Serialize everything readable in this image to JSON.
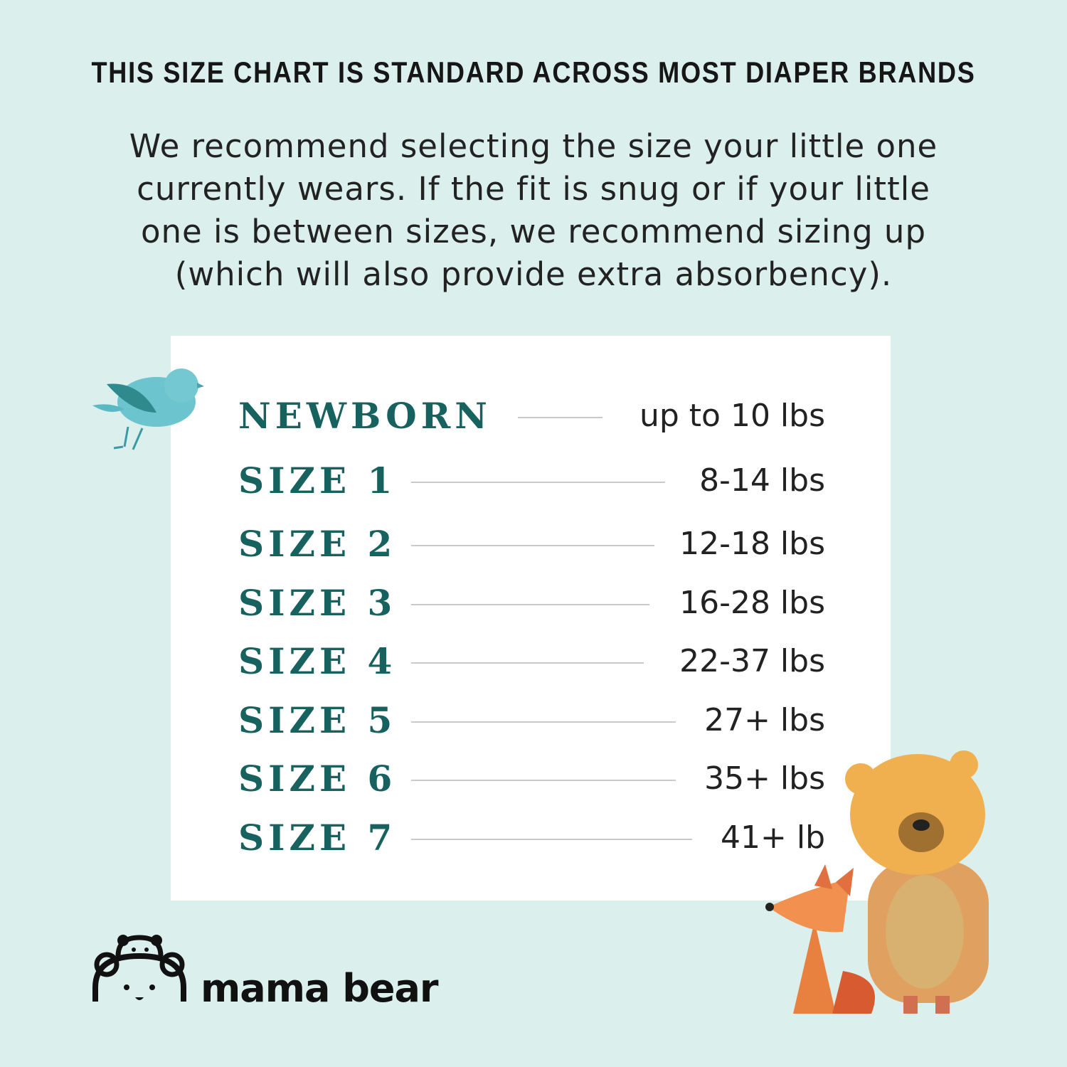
{
  "headline": "THIS SIZE CHART IS STANDARD ACROSS MOST DIAPER BRANDS",
  "intro_lines": [
    "We recommend selecting the size your little one",
    "currently wears. If the fit is snug or if your little",
    "one is between sizes, we recommend sizing up",
    "(which will also provide extra absorbency)."
  ],
  "sizes": [
    {
      "label": "NEWBORN",
      "weight": "up to 10 lbs"
    },
    {
      "label": "SIZE 1",
      "weight": "8-14 lbs"
    },
    {
      "label": "SIZE 2",
      "weight": "12-18 lbs"
    },
    {
      "label": "SIZE 3",
      "weight": "16-28 lbs"
    },
    {
      "label": "SIZE 4",
      "weight": "22-37 lbs"
    },
    {
      "label": "SIZE 5",
      "weight": "27+ lbs"
    },
    {
      "label": "SIZE 6",
      "weight": "35+ lbs"
    },
    {
      "label": "SIZE 7",
      "weight": "41+ lb"
    }
  ],
  "brand": {
    "name": "mama bear"
  },
  "colors": {
    "background": "#dbf0ec",
    "accent": "#17615e",
    "card": "#ffffff"
  },
  "illustrations": [
    "bird-icon",
    "bear-icon",
    "fox-icon"
  ]
}
